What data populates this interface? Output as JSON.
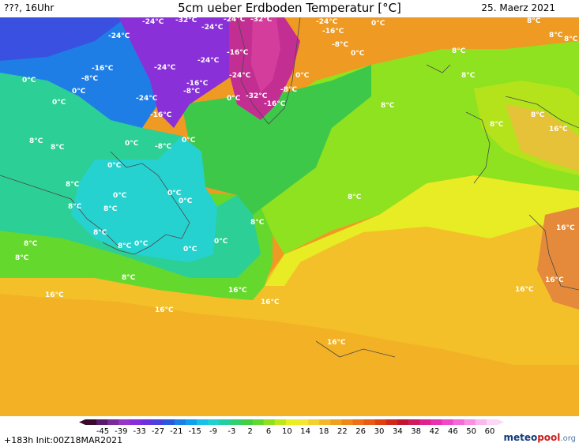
{
  "header": {
    "left": "???, 16Uhr",
    "title": "5cm ueber Erdboden Temperatur [°C]",
    "date": "25. Maerz 2021"
  },
  "map": {
    "labels": [
      {
        "t": "-24°C"
      },
      {
        "t": "-32°C"
      },
      {
        "t": "-24°C"
      },
      {
        "t": "-32°C"
      },
      {
        "t": "-24°C"
      },
      {
        "t": "0°C"
      },
      {
        "t": "8°C"
      },
      {
        "t": "-24°C"
      },
      {
        "t": "-24°C"
      },
      {
        "t": "-16°C"
      },
      {
        "t": "-8°C"
      },
      {
        "t": "8°C"
      },
      {
        "t": "8°C"
      },
      {
        "t": "-24°C"
      },
      {
        "t": "-16°C"
      },
      {
        "t": "0°C"
      },
      {
        "t": "8°C"
      },
      {
        "t": "-16°C"
      },
      {
        "t": "-24°C"
      },
      {
        "t": "-24°C"
      },
      {
        "t": "0°C"
      },
      {
        "t": "0°C"
      },
      {
        "t": "-8°C"
      },
      {
        "t": "-16°C"
      },
      {
        "t": "-8°C"
      },
      {
        "t": "-8°C"
      },
      {
        "t": "8°C"
      },
      {
        "t": "0°C"
      },
      {
        "t": "0°C"
      },
      {
        "t": "-24°C"
      },
      {
        "t": "0°C"
      },
      {
        "t": "-32°C"
      },
      {
        "t": "-16°C"
      },
      {
        "t": "8°C"
      },
      {
        "t": "-16°C"
      },
      {
        "t": "8°C"
      },
      {
        "t": "8°C"
      },
      {
        "t": "16°C"
      },
      {
        "t": "8°C"
      },
      {
        "t": "8°C"
      },
      {
        "t": "0°C"
      },
      {
        "t": "-8°C"
      },
      {
        "t": "0°C"
      },
      {
        "t": "0°C"
      },
      {
        "t": "8°C"
      },
      {
        "t": "0°C"
      },
      {
        "t": "0°C"
      },
      {
        "t": "0°C"
      },
      {
        "t": "8°C"
      },
      {
        "t": "8°C"
      },
      {
        "t": "8°C"
      },
      {
        "t": "8°C"
      },
      {
        "t": "8°C"
      },
      {
        "t": "16°C"
      },
      {
        "t": "8°C"
      },
      {
        "t": "8°C"
      },
      {
        "t": "0°C"
      },
      {
        "t": "0°C"
      },
      {
        "t": "0°C"
      },
      {
        "t": "8°C"
      },
      {
        "t": "16°C"
      },
      {
        "t": "8°C"
      },
      {
        "t": "16°C"
      },
      {
        "t": "16°C"
      },
      {
        "t": "16°C"
      },
      {
        "t": "16°C"
      },
      {
        "t": "16°C"
      },
      {
        "t": "16°C"
      }
    ]
  },
  "legend": {
    "colors": [
      "#3a0a2a",
      "#5a1a6a",
      "#7a2a9a",
      "#9a33c8",
      "#8a2adf",
      "#6a30e0",
      "#4a40e0",
      "#2a58e0",
      "#1a80e8",
      "#10a0f0",
      "#18c0e8",
      "#20d0d0",
      "#20d0a0",
      "#30d070",
      "#40d040",
      "#60d830",
      "#90e020",
      "#c0e818",
      "#e8f020",
      "#f5e630",
      "#f5cf30",
      "#f3b828",
      "#f0a020",
      "#ee8818",
      "#ec7015",
      "#e85a15",
      "#e04010",
      "#d02818",
      "#c01530",
      "#d01a60",
      "#e02090",
      "#e830b0",
      "#f048c8",
      "#f468d8",
      "#f890e4",
      "#fab8ee",
      "#fcd8f4"
    ],
    "ticks": [
      "-45",
      "-39",
      "-33",
      "-27",
      "-21",
      "-15",
      "-9",
      "-3",
      "2",
      "6",
      "10",
      "14",
      "18",
      "22",
      "26",
      "30",
      "34",
      "38",
      "42",
      "46",
      "50",
      "60"
    ],
    "info": "+183h  Init:00Z18MAR2021",
    "logo_a": "meteo",
    "logo_b": "pool",
    "logo_c": ".org"
  }
}
